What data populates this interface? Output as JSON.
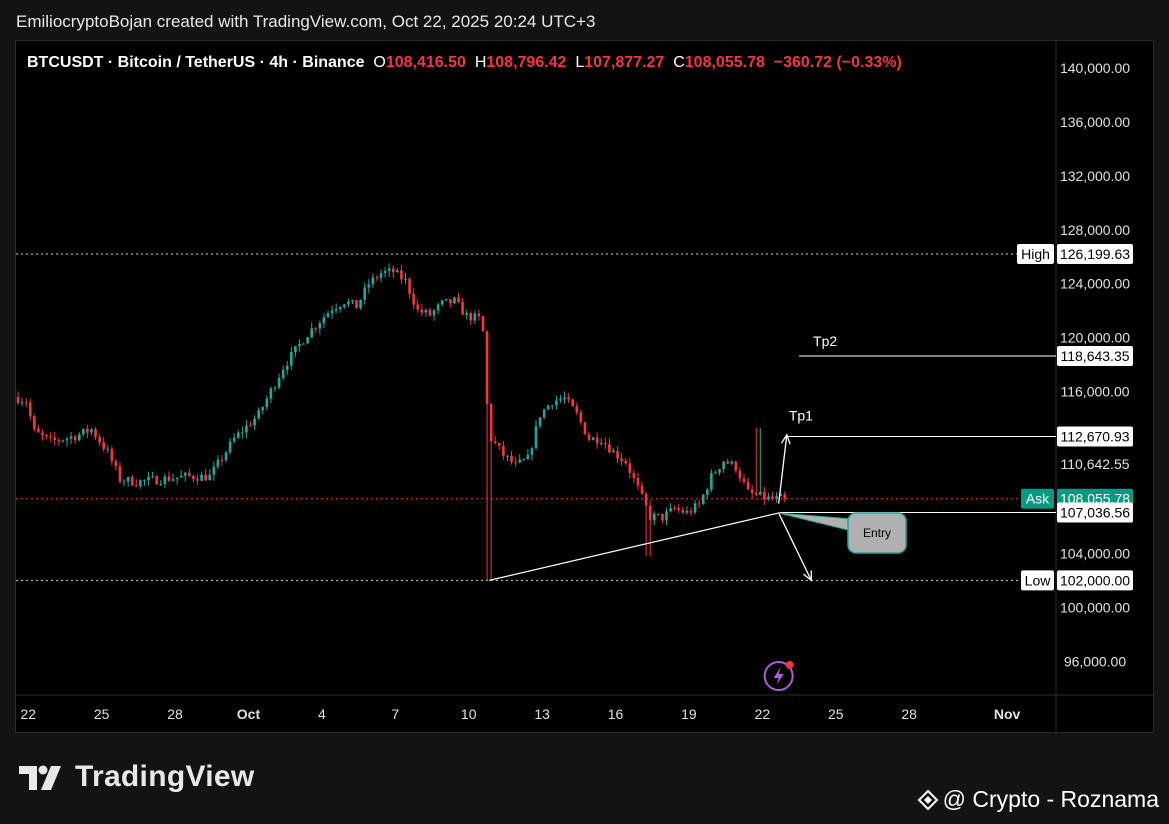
{
  "header": {
    "caption": "EmiliocryptoBojan created with TradingView.com, Oct 22, 2025 20:24 UTC+3"
  },
  "symbol": {
    "name": "BTCUSDT · Bitcoin / TetherUS · 4h · Binance",
    "o_label": "O",
    "o_value": "108,416.50",
    "h_label": "H",
    "h_value": "108,796.42",
    "l_label": "L",
    "l_value": "107,877.27",
    "c_label": "C",
    "c_value": "108,055.78",
    "change": "−360.72 (−0.33%)"
  },
  "footer": {
    "brand": "TradingView",
    "watermark": "@ Crypto - Roznama"
  },
  "colors": {
    "background": "#000000",
    "up": "#26a69a",
    "down": "#f23645",
    "text": "#d1d4dc",
    "ask_label": "#089981"
  },
  "chart_data": {
    "type": "candlestick",
    "interval": "4h",
    "y_axis": {
      "range": [
        93500,
        142000
      ],
      "ticks": [
        96000,
        100000,
        104000,
        110642.55,
        116000,
        120000,
        124000,
        128000,
        132000,
        136000,
        140000
      ],
      "tick_labels": [
        "96,000.00",
        "100,000.00",
        "104,000.00",
        "110,642.55",
        "116,000.00",
        "120,000.00",
        "124,000.00",
        "128,000.00",
        "132,000.00",
        "136,000.00",
        "140,000.00"
      ]
    },
    "x_axis": {
      "ticks": [
        "Sep 22",
        "Sep 25",
        "Sep 28",
        "Oct 1",
        "Oct 4",
        "Oct 7",
        "Oct 10",
        "Oct 13",
        "Oct 16",
        "Oct 19",
        "Oct 22",
        "Oct 25",
        "Oct 28",
        "Nov 1"
      ],
      "tick_labels": [
        "22",
        "25",
        "28",
        "Oct",
        "4",
        "7",
        "10",
        "13",
        "16",
        "19",
        "22",
        "25",
        "28",
        "Nov"
      ],
      "range": [
        "Sep 21 12:00",
        "Nov 3 00:00"
      ]
    },
    "price_waypoints": [
      [
        "Sep 21 12:00",
        115600
      ],
      [
        "Sep 22 00:00",
        115300
      ],
      [
        "Sep 22 08:00",
        113000
      ],
      [
        "Sep 23 00:00",
        112300
      ],
      [
        "Sep 24 00:00",
        112700
      ],
      [
        "Sep 24 16:00",
        113200
      ],
      [
        "Sep 25 08:00",
        111500
      ],
      [
        "Sep 25 20:00",
        109500
      ],
      [
        "Sep 26 12:00",
        109300
      ],
      [
        "Sep 27 12:00",
        109500
      ],
      [
        "Sep 28 12:00",
        109700
      ],
      [
        "Sep 29 12:00",
        109700
      ],
      [
        "Sep 30 12:00",
        112500
      ],
      [
        "Oct 1 12:00",
        114300
      ],
      [
        "Oct 2 12:00",
        117800
      ],
      [
        "Oct 3 12:00",
        120300
      ],
      [
        "Oct 4 12:00",
        122200
      ],
      [
        "Oct 5 00:00",
        122700
      ],
      [
        "Oct 5 12:00",
        122300
      ],
      [
        "Oct 6 00:00",
        124000
      ],
      [
        "Oct 6 12:00",
        124800
      ],
      [
        "Oct 7 00:00",
        124900
      ],
      [
        "Oct 7 12:00",
        124200
      ],
      [
        "Oct 8 00:00",
        122000
      ],
      [
        "Oct 8 12:00",
        121700
      ],
      [
        "Oct 9 00:00",
        122500
      ],
      [
        "Oct 9 12:00",
        122700
      ],
      [
        "Oct 10 00:00",
        121600
      ],
      [
        "Oct 10 12:00",
        121400
      ],
      [
        "Oct 10 16:00",
        120400
      ],
      [
        "Oct 10 20:00",
        115000
      ],
      [
        "Oct 11 00:00",
        112500
      ],
      [
        "Oct 11 12:00",
        111300
      ],
      [
        "Oct 12 00:00",
        110500
      ],
      [
        "Oct 12 12:00",
        111000
      ],
      [
        "Oct 13 00:00",
        114300
      ],
      [
        "Oct 13 12:00",
        115300
      ],
      [
        "Oct 14 00:00",
        115500
      ],
      [
        "Oct 14 12:00",
        114300
      ],
      [
        "Oct 15 00:00",
        112500
      ],
      [
        "Oct 15 12:00",
        112500
      ],
      [
        "Oct 16 00:00",
        111500
      ],
      [
        "Oct 16 12:00",
        110800
      ],
      [
        "Oct 17 00:00",
        108800
      ],
      [
        "Oct 17 12:00",
        106700
      ],
      [
        "Oct 18 00:00",
        106700
      ],
      [
        "Oct 18 12:00",
        107300
      ],
      [
        "Oct 19 00:00",
        107000
      ],
      [
        "Oct 19 12:00",
        107600
      ],
      [
        "Oct 20 00:00",
        109700
      ],
      [
        "Oct 20 12:00",
        110900
      ],
      [
        "Oct 21 00:00",
        110400
      ],
      [
        "Oct 21 12:00",
        108500
      ],
      [
        "Oct 22 00:00",
        108200
      ],
      [
        "Oct 22 12:00",
        108000
      ],
      [
        "Oct 22 20:00",
        108055.78
      ]
    ],
    "price_spikes": [
      {
        "time": "Oct 10 20:00",
        "low": 102000
      },
      {
        "time": "Oct 17 08:00",
        "low": 103800
      },
      {
        "time": "Oct 21 20:00",
        "high": 113300
      }
    ],
    "horizontal_levels": [
      {
        "label": "High",
        "value": 126199.63,
        "value_label": "126,199.63",
        "style": "dotted"
      },
      {
        "label": "Tp2",
        "value": 118643.35,
        "value_label": "118,643.35",
        "style": "solid"
      },
      {
        "label": "Tp1",
        "value": 112670.93,
        "value_label": "112,670.93",
        "style": "solid"
      },
      {
        "label": "Ask",
        "value": 108055.78,
        "value_label": "108,055.78",
        "style": "dotted"
      },
      {
        "label": "",
        "value": 107036.56,
        "value_label": "107,036.56",
        "style": "solid"
      },
      {
        "label": "Low",
        "value": 102000.0,
        "value_label": "102,000.00",
        "style": "dotted"
      }
    ],
    "annotations": [
      {
        "type": "trendline",
        "from": [
          "Oct 10 20:00",
          102000
        ],
        "to": [
          "Oct 22 16:00",
          107000
        ]
      },
      {
        "type": "arrow",
        "label": "Tp1",
        "from": [
          "Oct 22 16:00",
          107700
        ],
        "to": [
          "Oct 23 00:00",
          112800
        ]
      },
      {
        "type": "arrow",
        "label": "",
        "from": [
          "Oct 22 16:00",
          107000
        ],
        "to": [
          "Oct 24 00:00",
          102000
        ]
      },
      {
        "type": "callout",
        "label": "Entry",
        "anchor": [
          "Oct 22 16:00",
          107000
        ]
      }
    ]
  }
}
